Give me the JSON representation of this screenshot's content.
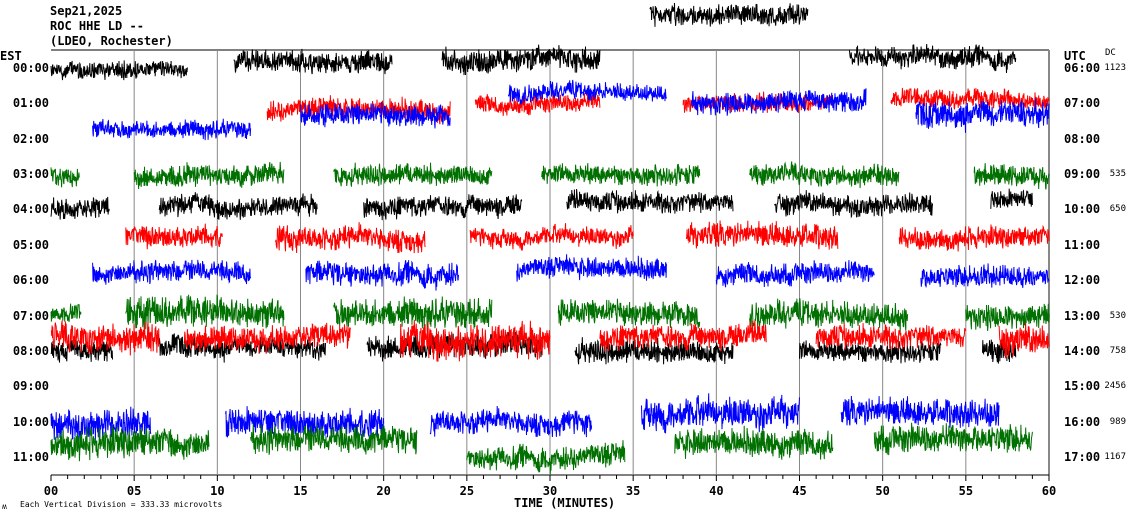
{
  "header": {
    "date": "Sep21,2025",
    "station": "ROC HHE LD --",
    "network": "(LDEO, Rochester)"
  },
  "left_axis_title": "EST",
  "right_axis_title": "UTC",
  "dc_title": "DC",
  "footer": {
    "symbol": "ʍ",
    "note": "Each Vertical Division =  333.33 microvolts"
  },
  "chart_data": {
    "type": "line",
    "title": "Sep21,2025 ROC HHE LD -- (LDEO, Rochester)",
    "xlabel": "TIME (MINUTES)",
    "xlim": [
      0,
      60
    ],
    "x_ticks": [
      "00",
      "05",
      "10",
      "15",
      "20",
      "25",
      "30",
      "35",
      "40",
      "45",
      "50",
      "55",
      "60"
    ],
    "grid": true,
    "colors": [
      "#000000",
      "#ff0000",
      "#0000ff",
      "#007000"
    ],
    "units_per_division_microvolts": 333.33,
    "rows": [
      {
        "est": "00:00",
        "utc": "06:00",
        "dc": "1123",
        "segments": [
          [
            0,
            8.2,
            0,
            0.3
          ],
          [
            11,
            20.5,
            -0.2,
            0.35
          ],
          [
            23.5,
            33,
            -0.3,
            0.4
          ],
          [
            36,
            45.5,
            -1.5,
            0.35
          ],
          [
            48,
            58,
            -0.3,
            0.35
          ]
        ]
      },
      {
        "est": "01:00",
        "utc": "07:00",
        "dc": "",
        "segments": [
          [
            13,
            24,
            0.2,
            0.35
          ],
          [
            25.5,
            33,
            0,
            0.3
          ],
          [
            38,
            47,
            0,
            0.3
          ],
          [
            50.5,
            60,
            -0.1,
            0.3
          ]
        ]
      },
      {
        "est": "02:00",
        "utc": "08:00",
        "dc": "",
        "segments": [
          [
            2.5,
            12,
            -0.3,
            0.3
          ],
          [
            15,
            24,
            -0.7,
            0.35
          ],
          [
            27.5,
            37,
            -1.3,
            0.3
          ],
          [
            38.5,
            49,
            -1.05,
            0.35
          ],
          [
            52,
            60,
            -0.7,
            0.45
          ]
        ]
      },
      {
        "est": "03:00",
        "utc": "09:00",
        "dc": "535",
        "segments": [
          [
            0,
            1.7,
            0,
            0.35
          ],
          [
            5,
            14,
            0,
            0.35
          ],
          [
            17,
            26.5,
            0,
            0.35
          ],
          [
            29.5,
            39,
            0,
            0.35
          ],
          [
            42,
            51,
            0,
            0.35
          ],
          [
            55.5,
            60,
            0,
            0.35
          ]
        ]
      },
      {
        "est": "04:00",
        "utc": "10:00",
        "dc": "650",
        "segments": [
          [
            0,
            3.5,
            0,
            0.35
          ],
          [
            6.5,
            16,
            -0.1,
            0.35
          ],
          [
            18.8,
            28.3,
            -0.1,
            0.35
          ],
          [
            31,
            41,
            -0.2,
            0.35
          ],
          [
            43.5,
            53,
            -0.2,
            0.35
          ],
          [
            56.5,
            59,
            -0.3,
            0.3
          ]
        ]
      },
      {
        "est": "05:00",
        "utc": "11:00",
        "dc": "",
        "segments": [
          [
            4.5,
            10.3,
            -0.3,
            0.35
          ],
          [
            13.5,
            22.5,
            -0.2,
            0.4
          ],
          [
            25.2,
            35,
            -0.2,
            0.3
          ],
          [
            38.2,
            47.3,
            -0.3,
            0.4
          ],
          [
            51,
            60,
            -0.2,
            0.35
          ]
        ]
      },
      {
        "est": "06:00",
        "utc": "12:00",
        "dc": "",
        "segments": [
          [
            2.5,
            12,
            -0.25,
            0.35
          ],
          [
            15.3,
            24.5,
            -0.2,
            0.4
          ],
          [
            28,
            37,
            -0.3,
            0.35
          ],
          [
            40,
            49.5,
            -0.2,
            0.35
          ],
          [
            52.3,
            60,
            -0.1,
            0.35
          ]
        ]
      },
      {
        "est": "07:00",
        "utc": "13:00",
        "dc": "530",
        "segments": [
          [
            0,
            1.8,
            0,
            0.3
          ],
          [
            4.5,
            14,
            -0.1,
            0.5
          ],
          [
            17,
            26.5,
            -0.1,
            0.5
          ],
          [
            30.5,
            39,
            -0.1,
            0.4
          ],
          [
            42,
            51.5,
            0,
            0.45
          ],
          [
            55,
            60,
            0,
            0.4
          ]
        ]
      },
      {
        "est": "08:00",
        "utc": "14:00",
        "dc": "758",
        "segments": [
          [
            0,
            3.7,
            0,
            0.35
          ],
          [
            6.5,
            16.5,
            -0.1,
            0.35
          ],
          [
            19,
            29.5,
            -0.2,
            0.4
          ],
          [
            31.5,
            41,
            0,
            0.4
          ],
          [
            45,
            53.5,
            0,
            0.35
          ],
          [
            56,
            58,
            0,
            0.4
          ]
        ]
      },
      {
        "est": "09:00",
        "utc": "15:00",
        "dc": "2456",
        "segments": [
          [
            0,
            6.5,
            -1.4,
            0.5
          ],
          [
            8,
            18,
            -1.4,
            0.4
          ],
          [
            21,
            30,
            -1.3,
            0.6
          ],
          [
            33,
            43,
            -1.4,
            0.4
          ],
          [
            46,
            55,
            -1.4,
            0.4
          ],
          [
            57,
            60,
            -1.3,
            0.5
          ]
        ]
      },
      {
        "est": "10:00",
        "utc": "16:00",
        "dc": "989",
        "segments": [
          [
            0,
            6,
            0,
            0.5
          ],
          [
            10.5,
            20,
            0,
            0.45
          ],
          [
            22.8,
            32.5,
            0,
            0.4
          ],
          [
            35.5,
            45,
            -0.2,
            0.5
          ],
          [
            47.5,
            57,
            -0.3,
            0.45
          ]
        ]
      },
      {
        "est": "11:00",
        "utc": "17:00",
        "dc": "1167",
        "segments": [
          [
            0,
            9.5,
            -0.4,
            0.5
          ],
          [
            12,
            22,
            -0.5,
            0.45
          ],
          [
            25,
            34.5,
            0,
            0.4
          ],
          [
            37.5,
            47,
            -0.4,
            0.45
          ],
          [
            49.5,
            59,
            -0.5,
            0.45
          ]
        ]
      }
    ]
  }
}
